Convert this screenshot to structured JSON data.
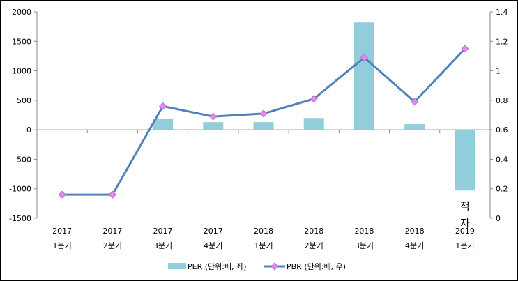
{
  "chart_data": {
    "type": "bar+line",
    "categories": [
      [
        "2017",
        "1분기"
      ],
      [
        "2017",
        "2분기"
      ],
      [
        "2017",
        "3분기"
      ],
      [
        "2017",
        "4분기"
      ],
      [
        "2018",
        "1분기"
      ],
      [
        "2018",
        "2분기"
      ],
      [
        "2018",
        "3분기"
      ],
      [
        "2018",
        "4분기"
      ],
      [
        "2019",
        "1분기"
      ]
    ],
    "series": [
      {
        "name": "PER (단위:배, 좌)",
        "type": "bar",
        "axis": "left",
        "color": "#92CDDC",
        "values": [
          null,
          null,
          180,
          130,
          130,
          200,
          1820,
          95,
          -1030
        ]
      },
      {
        "name": "PBR (단위:배, 우)",
        "type": "line",
        "axis": "right",
        "color": "#4F81BD",
        "marker_color": "#EE82EE",
        "values": [
          0.16,
          0.16,
          0.76,
          0.69,
          0.71,
          0.81,
          1.09,
          0.79,
          1.15
        ]
      }
    ],
    "left_axis": {
      "range": [
        -1500,
        2000
      ],
      "ticks": [
        "2000",
        "1500",
        "1000",
        "500",
        "0",
        "-500",
        "-1000",
        "-1500"
      ]
    },
    "right_axis": {
      "range": [
        0,
        1.4
      ],
      "ticks": [
        "1.4",
        "1.2",
        "1",
        "0.8",
        "0.6",
        "0.4",
        "0.2",
        "0"
      ]
    },
    "annotation": {
      "category_index": 8,
      "lines": [
        "적",
        "자"
      ]
    },
    "legend": "bottom",
    "grid": false
  }
}
